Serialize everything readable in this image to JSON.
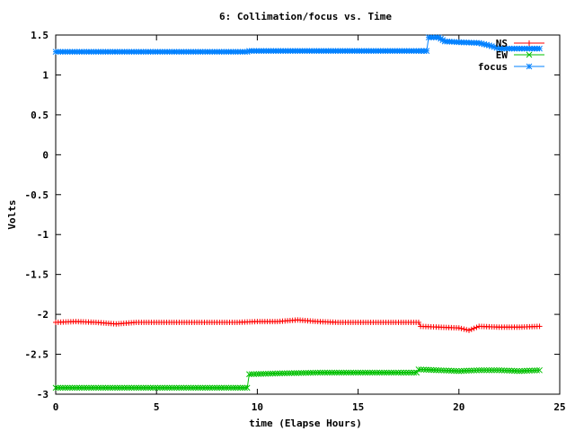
{
  "chart_data": {
    "type": "line",
    "title": "6: Collimation/focus vs. Time",
    "xlabel": "time (Elapse Hours)",
    "ylabel": "Volts",
    "xlim": [
      0,
      25
    ],
    "ylim": [
      -3,
      1.5
    ],
    "grid": false,
    "legend_placement": "top-right",
    "x_ticks": [
      0,
      5,
      10,
      15,
      20,
      25
    ],
    "x_tick_labels": [
      "0",
      "5",
      "10",
      "15",
      "20",
      "25"
    ],
    "y_ticks": [
      1.5,
      1,
      0.5,
      0,
      -0.5,
      -1,
      -1.5,
      -2,
      -2.5,
      -3
    ],
    "y_tick_labels": [
      "1.5",
      "1",
      "0.5",
      "0",
      "-0.5",
      "-1",
      "-1.5",
      "-2",
      "-2.5",
      "-3"
    ],
    "series": [
      {
        "name": "NS",
        "color": "#ff0000",
        "marker": "plus",
        "points": [
          [
            0,
            -2.1
          ],
          [
            1,
            -2.09
          ],
          [
            2,
            -2.1
          ],
          [
            3,
            -2.12
          ],
          [
            4,
            -2.1
          ],
          [
            5,
            -2.1
          ],
          [
            6,
            -2.1
          ],
          [
            7,
            -2.1
          ],
          [
            8,
            -2.1
          ],
          [
            9,
            -2.1
          ],
          [
            10,
            -2.09
          ],
          [
            11,
            -2.09
          ],
          [
            12,
            -2.07
          ],
          [
            13,
            -2.09
          ],
          [
            14,
            -2.1
          ],
          [
            15,
            -2.1
          ],
          [
            16,
            -2.1
          ],
          [
            17,
            -2.1
          ],
          [
            18,
            -2.1
          ],
          [
            18.1,
            -2.15
          ],
          [
            19,
            -2.16
          ],
          [
            20,
            -2.17
          ],
          [
            20.5,
            -2.2
          ],
          [
            21,
            -2.15
          ],
          [
            22,
            -2.16
          ],
          [
            23,
            -2.16
          ],
          [
            24,
            -2.15
          ]
        ]
      },
      {
        "name": "EW",
        "color": "#00c000",
        "marker": "x",
        "points": [
          [
            0,
            -2.92
          ],
          [
            2,
            -2.92
          ],
          [
            4,
            -2.92
          ],
          [
            6,
            -2.92
          ],
          [
            8,
            -2.92
          ],
          [
            9.5,
            -2.92
          ],
          [
            9.6,
            -2.75
          ],
          [
            11,
            -2.74
          ],
          [
            13,
            -2.73
          ],
          [
            15,
            -2.73
          ],
          [
            17,
            -2.73
          ],
          [
            17.9,
            -2.73
          ],
          [
            18,
            -2.69
          ],
          [
            19,
            -2.7
          ],
          [
            20,
            -2.71
          ],
          [
            21,
            -2.7
          ],
          [
            22,
            -2.7
          ],
          [
            23,
            -2.71
          ],
          [
            24,
            -2.7
          ]
        ]
      },
      {
        "name": "focus",
        "color": "#0080ff",
        "marker": "star",
        "points": [
          [
            0,
            1.29
          ],
          [
            2,
            1.29
          ],
          [
            4,
            1.29
          ],
          [
            6,
            1.29
          ],
          [
            8,
            1.29
          ],
          [
            9.5,
            1.29
          ],
          [
            9.6,
            1.3
          ],
          [
            12,
            1.3
          ],
          [
            14,
            1.3
          ],
          [
            16,
            1.3
          ],
          [
            18,
            1.3
          ],
          [
            18.4,
            1.3
          ],
          [
            18.5,
            1.47
          ],
          [
            19,
            1.47
          ],
          [
            19.3,
            1.42
          ],
          [
            20,
            1.41
          ],
          [
            21,
            1.4
          ],
          [
            21.5,
            1.37
          ],
          [
            22,
            1.33
          ],
          [
            23,
            1.33
          ],
          [
            24,
            1.33
          ]
        ]
      }
    ]
  }
}
